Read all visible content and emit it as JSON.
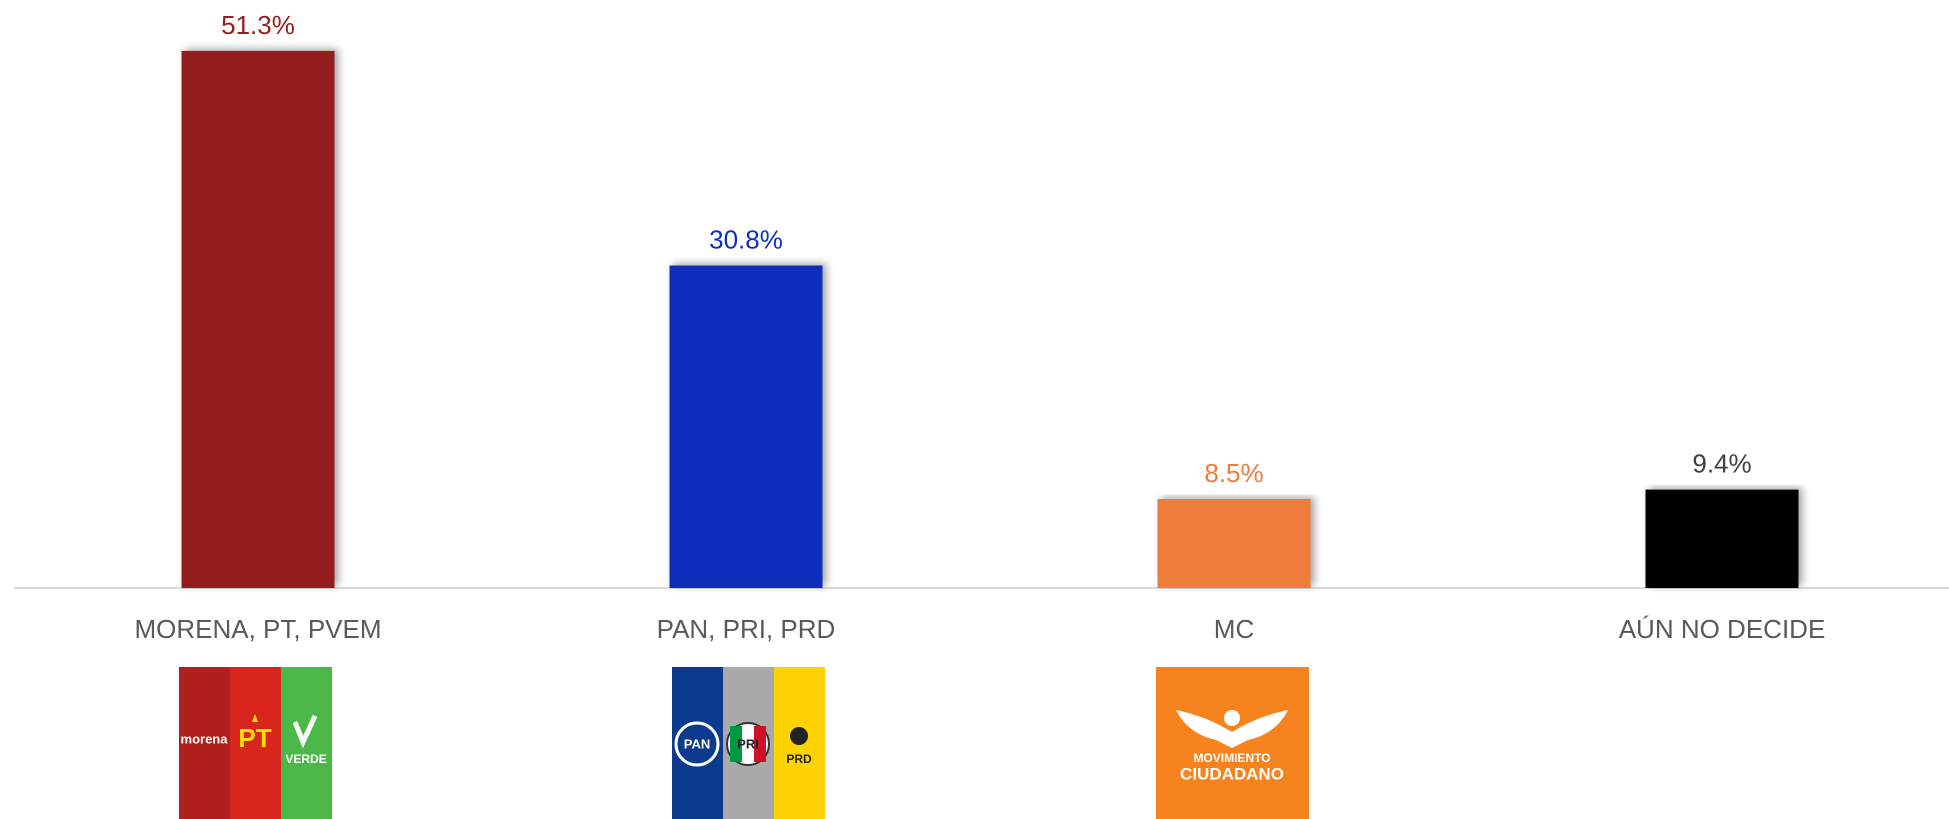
{
  "chart_data": {
    "type": "bar",
    "categories": [
      "MORENA, PT, PVEM",
      "PAN, PRI, PRD",
      "MC",
      "AÚN NO DECIDE"
    ],
    "values": [
      51.3,
      30.8,
      8.5,
      9.4
    ],
    "value_labels": [
      "51.3%",
      "30.8%",
      "8.5%",
      "9.4%"
    ],
    "colors": [
      "#931e1a",
      "#0f2fbd",
      "#ee7d3a",
      "#000000"
    ],
    "label_colors": [
      "#931e1a",
      "#0f2fbd",
      "#ee7d3a",
      "#404040"
    ]
  },
  "logos": [
    {
      "parts": [
        "morena",
        "PT",
        "VERDE"
      ]
    },
    {
      "parts": [
        "PAN",
        "PRI",
        "PRD"
      ]
    },
    {
      "parts": [
        "MOVIMIENTO",
        "CIUDADANO"
      ]
    }
  ]
}
